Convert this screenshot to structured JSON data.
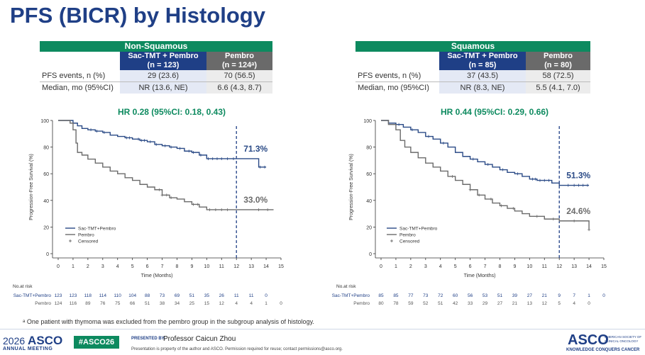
{
  "title": "PFS (BICR) by Histology",
  "tables": [
    {
      "group": "Non-Squamous",
      "arm_sac": {
        "line1": "Sac-TMT + Pembro",
        "line2": "(n = 123)"
      },
      "arm_pembro": {
        "line1": "Pembro",
        "line2": "(n = 124ᵃ)"
      },
      "rows": [
        {
          "label": "PFS events, n (%)",
          "sac": "29 (23.6)",
          "pembro": "70 (56.5)"
        },
        {
          "label": "Median, mo (95%CI)",
          "sac": "NR (13.6, NE)",
          "pembro": "6.6 (4.3, 8.7)"
        }
      ]
    },
    {
      "group": "Squamous",
      "arm_sac": {
        "line1": "Sac-TMT + Pembro",
        "line2": "(n = 85)"
      },
      "arm_pembro": {
        "line1": "Pembro",
        "line2": "(n = 80)"
      },
      "rows": [
        {
          "label": "PFS events, n (%)",
          "sac": "37 (43.5)",
          "pembro": "58 (72.5)"
        },
        {
          "label": "Median, mo (95%CI)",
          "sac": "NR (8.3, NE)",
          "pembro": "5.5 (4.1, 7.0)"
        }
      ]
    }
  ],
  "chart_data": [
    {
      "type": "line",
      "step": true,
      "title": "HR 0.28 (95%CI: 0.18, 0.43)",
      "xlabel": "Time (Months)",
      "ylabel": "Progression-Free Survival (%)",
      "xlim": [
        0,
        15
      ],
      "ylim": [
        0,
        100
      ],
      "xticks": [
        "0",
        "1",
        "2",
        "3",
        "4",
        "5",
        "6",
        "7",
        "8",
        "9",
        "10",
        "11",
        "12",
        "13",
        "14",
        "15"
      ],
      "yticks": [
        "0",
        "20",
        "40",
        "60",
        "80",
        "100"
      ],
      "landmark_x": 12,
      "legend": [
        "Sac-TMT+Pembro",
        "Pembro",
        "Censored"
      ],
      "legend_position": "bottom-left",
      "colors": {
        "sac": "#2a4a86",
        "pembro": "#6b6b6b",
        "landmark": "#1f3f86"
      },
      "series": [
        {
          "name": "Sac-TMT+Pembro",
          "key": "sac",
          "x": [
            0,
            0.8,
            1.0,
            1.3,
            1.6,
            2.0,
            2.5,
            3.0,
            3.5,
            4.0,
            4.5,
            5.0,
            5.5,
            6.0,
            6.5,
            7.0,
            7.5,
            8.0,
            8.5,
            9.0,
            9.5,
            10.0,
            12.0,
            13.5,
            14.0
          ],
          "y": [
            100,
            100,
            98,
            96,
            94,
            93,
            92,
            91,
            89,
            88,
            87,
            86,
            85,
            84,
            82,
            81,
            80,
            79,
            77,
            76,
            74,
            71.3,
            71.3,
            65,
            65
          ],
          "censored_x": [
            2.2,
            2.6,
            3.1,
            4.6,
            4.8,
            5.4,
            5.6,
            5.8,
            6.2,
            6.6,
            7.2,
            7.6,
            8.2,
            8.8,
            9.1,
            9.6,
            10.1,
            10.4,
            10.7,
            11.0,
            11.4,
            11.8,
            13.6,
            13.9
          ]
        },
        {
          "name": "Pembro",
          "key": "pembro",
          "x": [
            0,
            0.8,
            1.0,
            1.2,
            1.3,
            1.6,
            2.0,
            2.5,
            3.0,
            3.5,
            4.0,
            4.5,
            5.0,
            5.5,
            6.0,
            6.5,
            7.0,
            7.5,
            8.0,
            8.5,
            9.0,
            9.5,
            10.0,
            12.0,
            14.5
          ],
          "y": [
            100,
            98,
            93,
            83,
            76,
            74,
            71,
            68,
            65,
            62,
            60,
            57,
            55,
            52,
            50,
            48,
            44,
            42,
            41,
            39,
            37,
            35,
            33,
            33,
            33
          ],
          "censored_x": [
            6.8,
            7.0,
            7.3,
            7.6,
            9.1,
            9.4,
            10.2,
            10.6,
            11.0,
            11.4,
            13.5,
            14.1
          ]
        }
      ],
      "landmark_labels": [
        {
          "text": "71.3%",
          "key": "sac"
        },
        {
          "text": "33.0%",
          "key": "pembro"
        }
      ],
      "at_risk": {
        "title": "No.at risk",
        "rows": [
          {
            "label": "Sac-TMT+Pembro",
            "key": "sac",
            "values": [
              "123",
              "123",
              "118",
              "114",
              "110",
              "104",
              "88",
              "73",
              "69",
              "51",
              "35",
              "26",
              "11",
              "11",
              "0"
            ]
          },
          {
            "label": "Pembro",
            "key": "pembro",
            "values": [
              "124",
              "116",
              "89",
              "76",
              "75",
              "66",
              "51",
              "38",
              "34",
              "25",
              "15",
              "12",
              "4",
              "4",
              "1",
              "0"
            ]
          }
        ]
      }
    },
    {
      "type": "line",
      "step": true,
      "title": "HR 0.44 (95%CI: 0.29, 0.66)",
      "xlabel": "Time (Months)",
      "ylabel": "Progression-Free Survival (%)",
      "xlim": [
        0,
        15
      ],
      "ylim": [
        0,
        100
      ],
      "xticks": [
        "0",
        "1",
        "2",
        "3",
        "4",
        "5",
        "6",
        "7",
        "8",
        "9",
        "10",
        "11",
        "12",
        "13",
        "14",
        "15"
      ],
      "yticks": [
        "0",
        "20",
        "40",
        "60",
        "80",
        "100"
      ],
      "landmark_x": 12,
      "legend": [
        "Sac-TMT+Pembro",
        "Pembro",
        "Censored"
      ],
      "legend_position": "bottom-left",
      "colors": {
        "sac": "#2a4a86",
        "pembro": "#6b6b6b",
        "landmark": "#1f3f86"
      },
      "series": [
        {
          "name": "Sac-TMT+Pembro",
          "key": "sac",
          "x": [
            0,
            0.5,
            1.0,
            1.5,
            2.0,
            2.5,
            3.0,
            3.5,
            4.0,
            4.5,
            5.0,
            5.5,
            6.0,
            6.5,
            7.0,
            7.5,
            8.0,
            8.5,
            9.0,
            9.5,
            10.0,
            10.5,
            11.0,
            11.5,
            12.0,
            14.0
          ],
          "y": [
            100,
            98,
            97,
            95,
            93,
            91,
            88,
            86,
            83,
            80,
            76,
            73,
            71,
            69,
            67,
            65,
            63,
            61,
            60,
            58,
            56,
            55,
            55,
            53,
            51.3,
            51.3
          ],
          "censored_x": [
            1.2,
            2.1,
            3.2,
            4.2,
            6.2,
            7.2,
            8.2,
            9.2,
            10.2,
            10.4,
            10.7,
            11.0,
            11.3,
            12.6,
            13.0,
            13.3,
            13.6,
            13.9
          ]
        },
        {
          "name": "Pembro",
          "key": "pembro",
          "x": [
            0,
            0.5,
            1.0,
            1.3,
            1.6,
            2.0,
            2.5,
            3.0,
            3.5,
            4.0,
            4.5,
            5.0,
            5.5,
            6.0,
            6.5,
            7.0,
            7.5,
            8.0,
            8.5,
            9.0,
            9.5,
            10.0,
            11.0,
            12.0,
            13.9,
            14.0
          ],
          "y": [
            100,
            97,
            93,
            85,
            80,
            76,
            72,
            68,
            65,
            62,
            58,
            55,
            52,
            48,
            44,
            41,
            38,
            36,
            34,
            32,
            30,
            28,
            26,
            24.6,
            24.6,
            18
          ],
          "censored_x": [
            4.8,
            6.0,
            6.6,
            7.4,
            8.1,
            8.9,
            10.5,
            11.6,
            13.0,
            14.0
          ]
        }
      ],
      "landmark_labels": [
        {
          "text": "51.3%",
          "key": "sac"
        },
        {
          "text": "24.6%",
          "key": "pembro"
        }
      ],
      "at_risk": {
        "title": "No.at risk",
        "rows": [
          {
            "label": "Sac-TMT+Pembro",
            "key": "sac",
            "values": [
              "85",
              "85",
              "77",
              "73",
              "72",
              "60",
              "56",
              "53",
              "51",
              "39",
              "27",
              "21",
              "9",
              "7",
              "1",
              "0"
            ]
          },
          {
            "label": "Pembro",
            "key": "pembro",
            "values": [
              "80",
              "78",
              "59",
              "52",
              "51",
              "42",
              "33",
              "29",
              "27",
              "21",
              "13",
              "12",
              "5",
              "4",
              "0"
            ]
          }
        ]
      }
    }
  ],
  "footnote": "ᵃ One patient with thymoma was excluded from the pembro group in the subgroup analysis of histology.",
  "footer": {
    "year": "2026",
    "org": "ASCO",
    "meeting": "ANNUAL MEETING",
    "hashtag": "#ASCO26",
    "presented_by_label": "PRESENTED BY:",
    "presenter": "Professor Caicun Zhou",
    "disclaimer": "Presentation is property of the author and ASCO. Permission required for reuse; contact permissions@asco.org.",
    "logo": "ASCO",
    "logo_sub_1": "AMERICAN SOCIETY OF",
    "logo_sub_2": "CLINICAL ONCOLOGY",
    "tagline": "KNOWLEDGE CONQUERS CANCER"
  }
}
